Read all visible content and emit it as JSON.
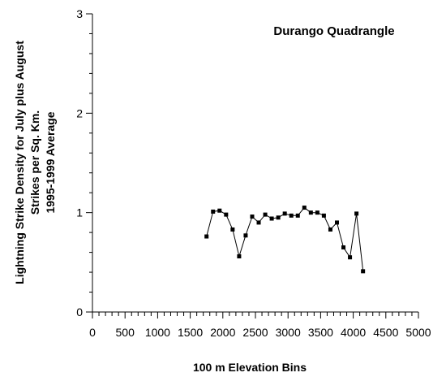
{
  "chart_data": {
    "type": "line",
    "title": "Durango  Quadrangle",
    "xlabel": "100 m Elevation Bins",
    "ylabel_lines": [
      "Lightning Strike Density for July plus August",
      "Strikes per Sq. Km.",
      "1995-1999 Average"
    ],
    "xlim": [
      0,
      5000
    ],
    "ylim": [
      0,
      3
    ],
    "x_major_ticks": [
      0,
      500,
      1000,
      1500,
      2000,
      2500,
      3000,
      3500,
      4000,
      4500,
      5000
    ],
    "x_minor_step": 100,
    "y_major_ticks": [
      0,
      1,
      2,
      3
    ],
    "y_minor_step": 0.2,
    "grid": false,
    "legend": "none",
    "line_color": "#000000",
    "series": [
      {
        "x": [
          1750,
          1850,
          1950,
          2050,
          2150,
          2250,
          2350,
          2450,
          2550,
          2650,
          2750,
          2850,
          2950,
          3050,
          3150,
          3250,
          3350,
          3450,
          3550,
          3650,
          3750,
          3850,
          3950,
          4050,
          4150
        ],
        "values": [
          0.76,
          1.01,
          1.02,
          0.98,
          0.83,
          0.56,
          0.77,
          0.96,
          0.9,
          0.98,
          0.94,
          0.95,
          0.99,
          0.97,
          0.97,
          1.05,
          1.0,
          1.0,
          0.97,
          0.83,
          0.9,
          0.65,
          0.55,
          0.99,
          0.41
        ]
      }
    ]
  }
}
